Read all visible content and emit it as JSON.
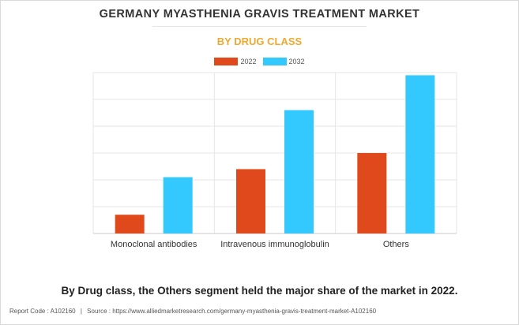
{
  "title": "GERMANY MYASTHENIA GRAVIS TREATMENT MARKET",
  "subtitle": "BY DRUG CLASS",
  "caption": "By Drug class, the Others segment held the major share of the market in 2022.",
  "footer": {
    "report_code": "Report Code : A102160",
    "separator": "|",
    "source": "Source : https://www.alliedmarketresearch.com/germany-myasthenia-gravis-treatment-market-A102160"
  },
  "colors": {
    "series_2022": "#e0491b",
    "series_2032": "#33c9ff",
    "grid": "#e6e6e6",
    "axis": "#c8c8c8"
  },
  "chart_data": {
    "type": "bar",
    "title": "GERMANY MYASTHENIA GRAVIS TREATMENT MARKET",
    "subtitle": "BY DRUG CLASS",
    "xlabel": "",
    "ylabel": "",
    "categories": [
      "Monoclonal antibodies",
      "Intravenous immunoglobulin",
      "Others"
    ],
    "series": [
      {
        "name": "2022",
        "values": [
          0.7,
          2.4,
          3.0
        ]
      },
      {
        "name": "2032",
        "values": [
          2.1,
          4.6,
          5.9
        ]
      }
    ],
    "ylim": [
      0,
      6.0
    ],
    "y_tick_labels_shown": false,
    "grid": true,
    "legend_position": "top-center"
  }
}
